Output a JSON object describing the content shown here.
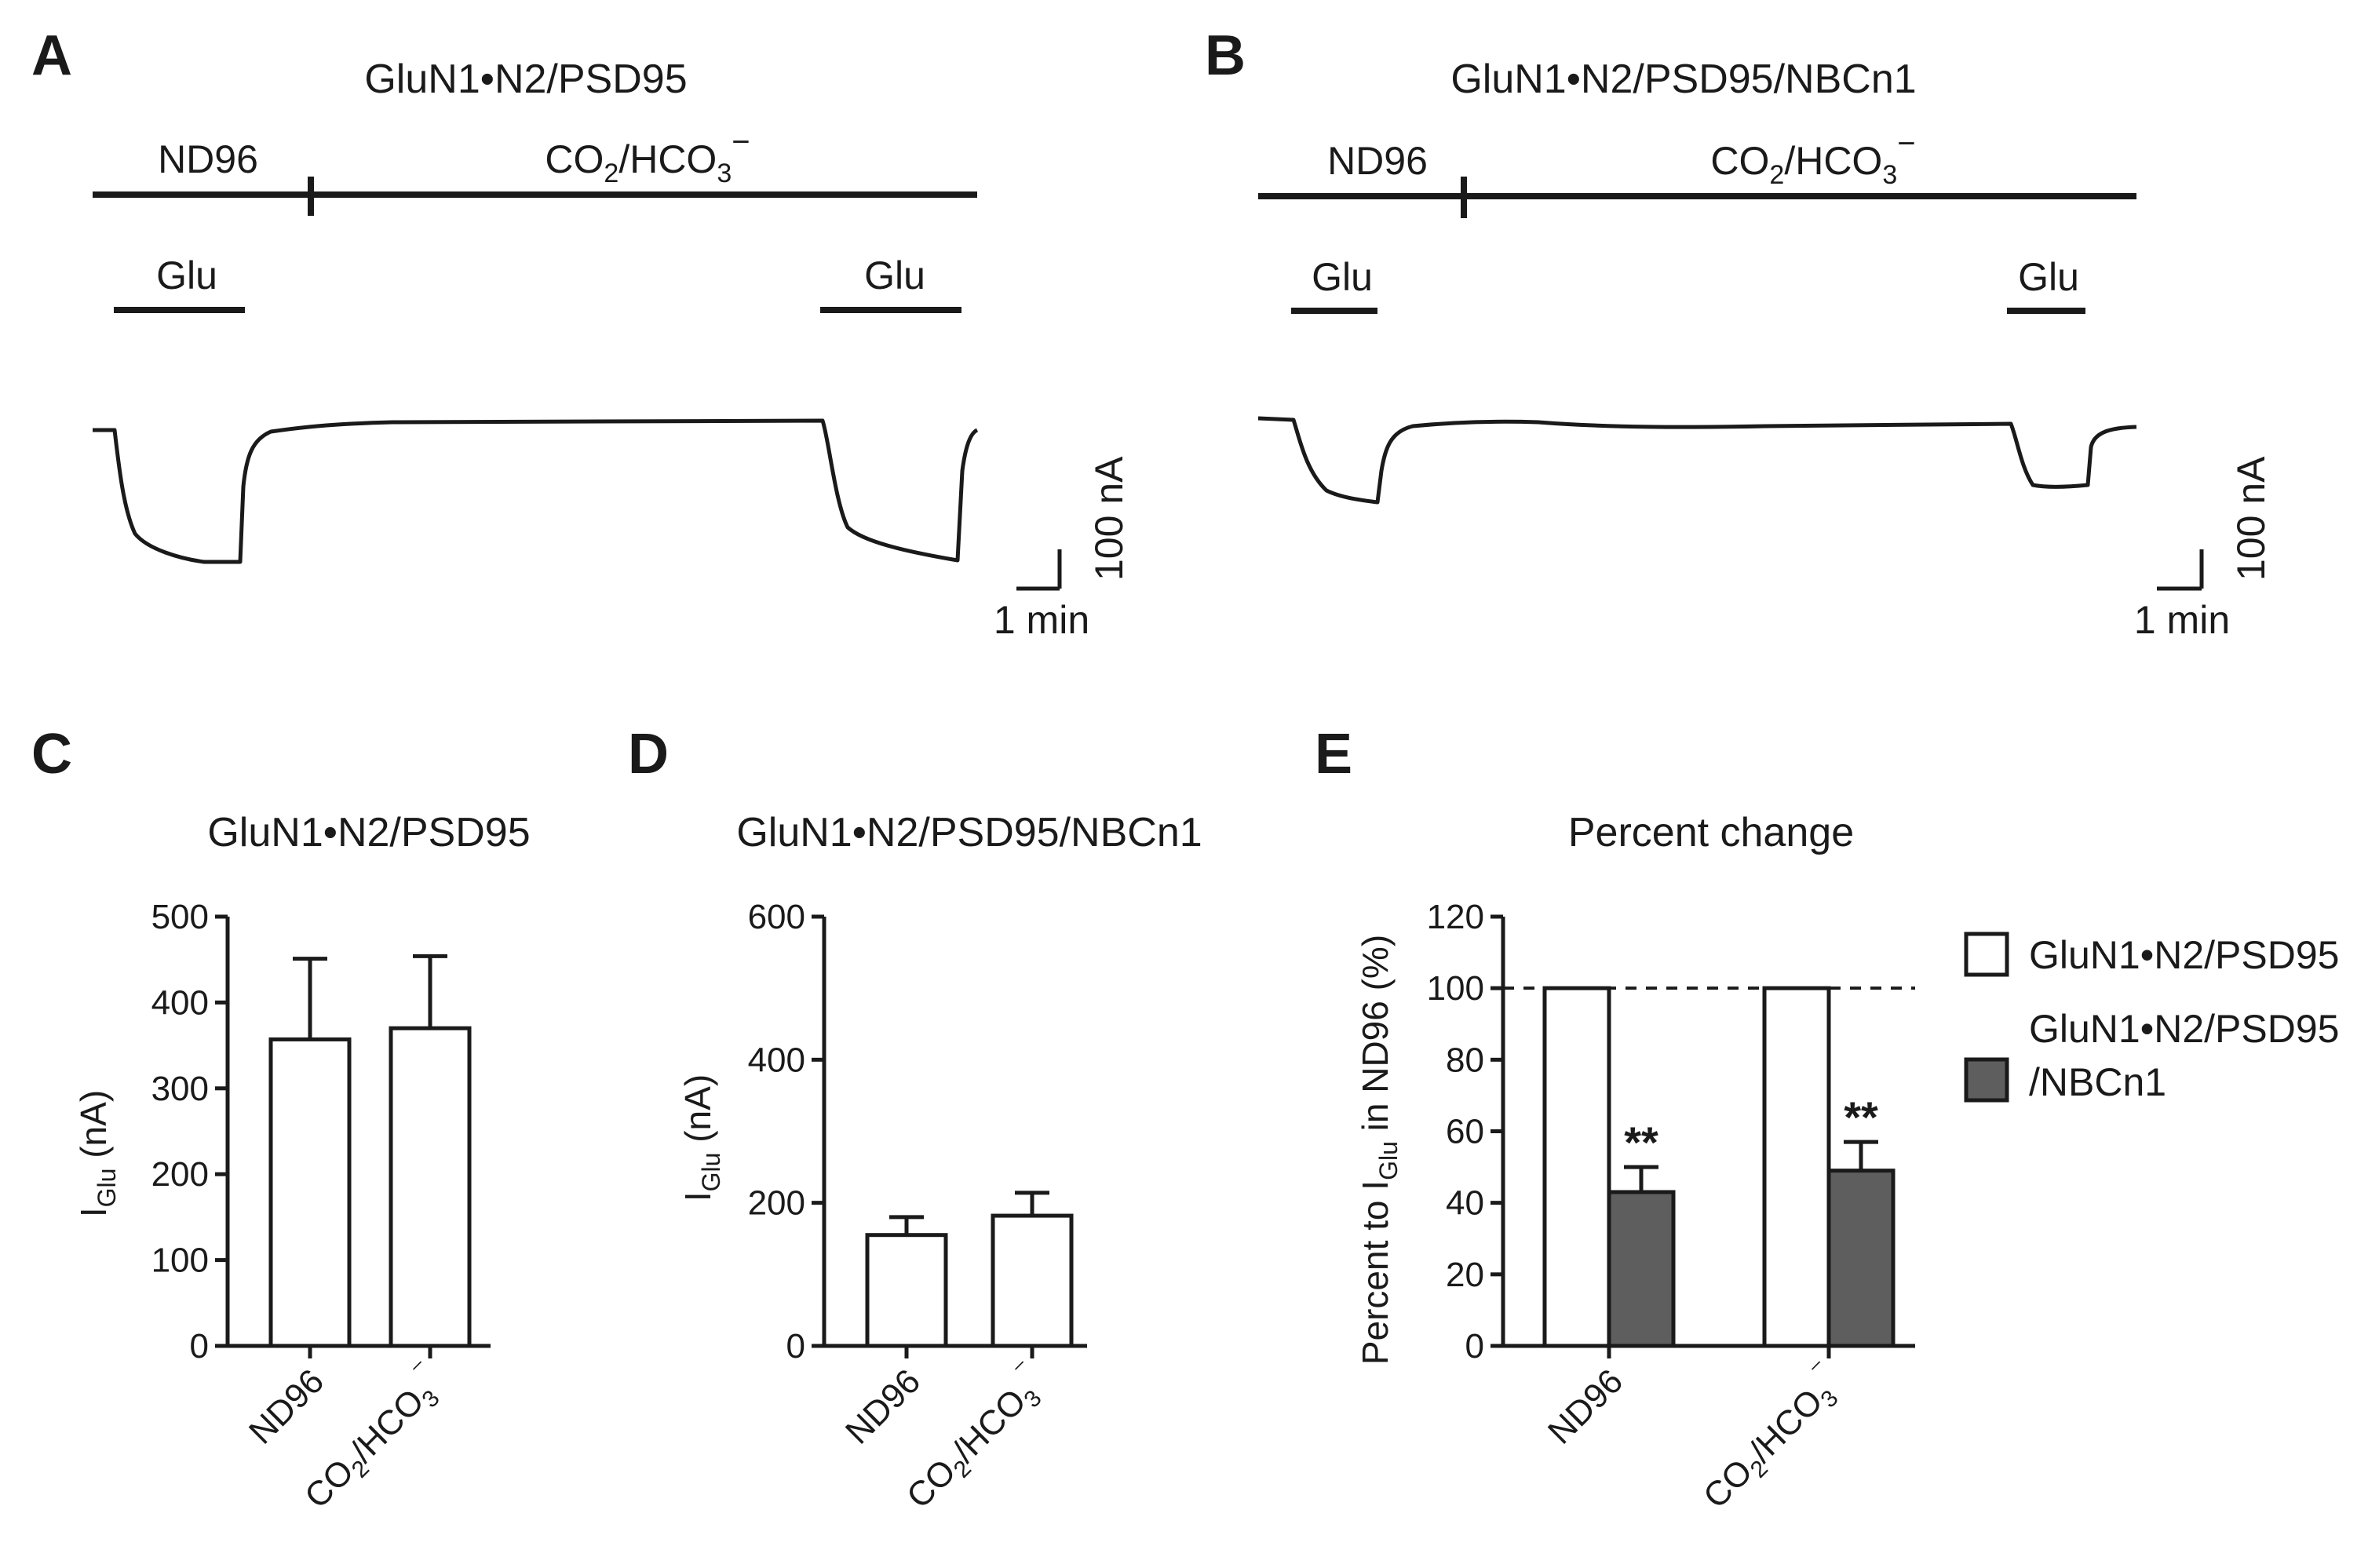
{
  "panels": {
    "A": {
      "letter": "A",
      "title": "GluN1•N2/PSD95",
      "seg_nd96": "ND96",
      "seg_co2": "CO2/HCO3⁻",
      "glu": [
        "Glu",
        "Glu"
      ],
      "scale_y": "100 nA",
      "scale_x": "1 min"
    },
    "B": {
      "letter": "B",
      "title": "GluN1•N2/PSD95/NBCn1",
      "seg_nd96": "ND96",
      "seg_co2": "CO2/HCO3⁻",
      "glu": [
        "Glu",
        "Glu"
      ],
      "scale_y": "100 nA",
      "scale_x": "1 min"
    },
    "C": {
      "letter": "C"
    },
    "D": {
      "letter": "D"
    },
    "E": {
      "letter": "E"
    }
  },
  "chart_data": [
    {
      "id": "C",
      "type": "bar",
      "title": "GluN1•N2/PSD95",
      "ylabel": "IGlu (nA)",
      "categories": [
        "ND96",
        "CO2/HCO3⁻"
      ],
      "values": [
        357,
        370
      ],
      "errors": [
        94,
        84
      ],
      "ylim": [
        0,
        500
      ],
      "yticks": [
        0,
        100,
        200,
        300,
        400,
        500
      ]
    },
    {
      "id": "D",
      "type": "bar",
      "title": "GluN1•N2/PSD95/NBCn1",
      "ylabel": "IGlu (nA)",
      "categories": [
        "ND96",
        "CO2/HCO3⁻"
      ],
      "values": [
        155,
        182
      ],
      "errors": [
        25,
        32
      ],
      "ylim": [
        0,
        600
      ],
      "yticks": [
        0,
        200,
        400,
        600
      ]
    },
    {
      "id": "E",
      "type": "bar",
      "title": "Percent change",
      "ylabel": "Percent to IGlu in ND96 (%)",
      "categories": [
        "ND96",
        "CO2/HCO3⁻"
      ],
      "series": [
        {
          "name": "GluN1•N2/PSD95",
          "values": [
            100,
            100
          ],
          "errors": [
            0,
            0
          ],
          "color": "#ffffff"
        },
        {
          "name": "GluN1•N2/PSD95/NBCn1",
          "values": [
            43,
            49
          ],
          "errors": [
            7,
            8
          ],
          "color": "#5e5e5e"
        }
      ],
      "ylim": [
        0,
        120
      ],
      "yticks": [
        0,
        20,
        40,
        60,
        80,
        100,
        120
      ],
      "reference_line": 100,
      "annotations": [
        "**",
        "**"
      ],
      "legend": [
        "GluN1•N2/PSD95",
        "GluN1•N2/PSD95",
        "/NBCn1"
      ]
    }
  ]
}
